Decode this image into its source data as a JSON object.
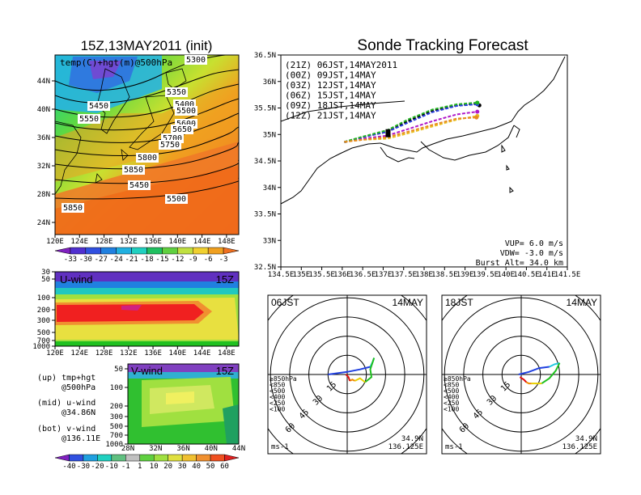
{
  "left": {
    "title": "15Z,13MAY2011 (init)",
    "map": {
      "panel_label": "temp(C)+hgt(m)@500hPa",
      "lon_ticks": [
        "120E",
        "124E",
        "128E",
        "132E",
        "136E",
        "140E",
        "144E",
        "148E"
      ],
      "lat_ticks": [
        "44N",
        "40N",
        "36N",
        "32N",
        "28N",
        "24N"
      ],
      "contour_labels": [
        "5350",
        "5400",
        "5450",
        "5500",
        "5550",
        "5600",
        "5650",
        "5700",
        "5750",
        "5800",
        "5850",
        "5450",
        "5500",
        "5850",
        "5300"
      ],
      "colorbar": [
        "-33",
        "-30",
        "-27",
        "-24",
        "-21",
        "-18",
        "-15",
        "-12",
        "-9",
        "-6",
        "-3"
      ]
    },
    "uwind": {
      "label": "U-wind",
      "time": "15Z",
      "p_ticks": [
        "30",
        "50",
        "100",
        "200",
        "300",
        "500",
        "700",
        "1000"
      ],
      "lon_ticks": [
        "120E",
        "124E",
        "128E",
        "132E",
        "136E",
        "140E",
        "144E",
        "148E"
      ]
    },
    "vwind": {
      "label": "V-wind",
      "time": "15Z",
      "p_ticks": [
        "50",
        "100",
        "200",
        "300",
        "500",
        "700",
        "1000"
      ],
      "lat_ticks": [
        "28N",
        "32N",
        "36N",
        "40N",
        "44N"
      ],
      "colorbar": [
        "-40",
        "-30",
        "-20",
        "-10",
        "-1",
        "1",
        "10",
        "20",
        "30",
        "40",
        "50",
        "60"
      ]
    },
    "legend": {
      "up1": "(up) tmp+hgt",
      "up2": "@500hPa",
      "mid1": "(mid) u-wind",
      "mid2": "@34.86N",
      "bot1": "(bot) v-wind",
      "bot2": "@136.11E"
    }
  },
  "right": {
    "title": "Sonde Tracking Forecast",
    "launches": [
      {
        "label": "(21Z)  06JST,14MAY2011",
        "color": "#000000"
      },
      {
        "label": "(00Z)  09JST,14MAY",
        "color": "#b018c8"
      },
      {
        "label": "(03Z)  12JST,14MAY",
        "color": "#2a3fe0"
      },
      {
        "label": "(06Z)  15JST,14MAY",
        "color": "#22b322"
      },
      {
        "label": "(09Z)  18JST,14MAY",
        "color": "#e8c020"
      },
      {
        "label": "(12Z)  21JST,14MAY",
        "color": "#e88a20"
      }
    ],
    "lon_ticks": [
      "134.5E",
      "135E",
      "135.5E",
      "136E",
      "136.5E",
      "137E",
      "137.5E",
      "138E",
      "138.5E",
      "139E",
      "139.5E",
      "140E",
      "140.5E",
      "141E",
      "141.5E"
    ],
    "lat_ticks": [
      "36.5N",
      "36N",
      "35.5N",
      "35N",
      "34.5N",
      "34N",
      "33.5N",
      "33N",
      "32.5N"
    ],
    "params": {
      "vup": "VUP=  6.0  m/s",
      "vdw": "VDW= -3.0  m/s",
      "burst": "Burst Alt= 34.0  km"
    }
  },
  "chart_data": [
    {
      "type": "line",
      "title": "Sonde Tracking Forecast",
      "xlim": [
        134.5,
        141.5
      ],
      "ylim": [
        32.5,
        36.5
      ],
      "series": [
        {
          "name": "(21Z) 06JST,14MAY2011",
          "points": [
            [
              136.05,
              34.85
            ],
            [
              136.5,
              34.95
            ],
            [
              137.1,
              35.05
            ],
            [
              137.6,
              35.25
            ],
            [
              138.2,
              35.45
            ],
            [
              138.8,
              35.55
            ],
            [
              139.25,
              35.58
            ],
            [
              139.35,
              35.55
            ]
          ]
        },
        {
          "name": "(00Z) 09JST,14MAY",
          "points": [
            [
              136.05,
              34.86
            ],
            [
              136.5,
              34.92
            ],
            [
              137.1,
              34.98
            ],
            [
              137.6,
              35.1
            ],
            [
              138.2,
              35.25
            ],
            [
              138.8,
              35.38
            ],
            [
              139.3,
              35.43
            ]
          ]
        },
        {
          "name": "(03Z) 12JST,14MAY",
          "points": [
            [
              136.05,
              34.86
            ],
            [
              136.5,
              34.95
            ],
            [
              137.1,
              35.05
            ],
            [
              137.6,
              35.22
            ],
            [
              138.2,
              35.42
            ],
            [
              138.8,
              35.54
            ],
            [
              139.3,
              35.57
            ]
          ]
        },
        {
          "name": "(06Z) 15JST,14MAY",
          "points": [
            [
              136.05,
              34.86
            ],
            [
              136.5,
              34.96
            ],
            [
              137.1,
              35.08
            ],
            [
              137.6,
              35.28
            ],
            [
              138.2,
              35.47
            ],
            [
              138.8,
              35.57
            ],
            [
              139.3,
              35.6
            ]
          ]
        },
        {
          "name": "(09Z) 18JST,14MAY",
          "points": [
            [
              136.05,
              34.86
            ],
            [
              136.5,
              34.9
            ],
            [
              137.1,
              34.92
            ],
            [
              137.6,
              35.02
            ],
            [
              138.2,
              35.15
            ],
            [
              138.8,
              35.28
            ],
            [
              139.3,
              35.35
            ]
          ]
        },
        {
          "name": "(12Z) 21JST,14MAY",
          "points": [
            [
              136.05,
              34.86
            ],
            [
              136.5,
              34.9
            ],
            [
              137.1,
              34.95
            ],
            [
              137.6,
              35.05
            ],
            [
              138.2,
              35.18
            ],
            [
              138.8,
              35.3
            ],
            [
              139.28,
              35.32
            ]
          ]
        }
      ]
    }
  ],
  "hodos": [
    {
      "time": "06JST",
      "date": "14MAY",
      "loc1": "34.9N",
      "loc2": "136.125E",
      "units": "ms-1",
      "rings": [
        "15",
        "30",
        "45",
        "60"
      ],
      "legend": [
        {
          "text": "≥850hPa",
          "color": "#e01010"
        },
        {
          "text": "<850",
          "color": "#f08c00"
        },
        {
          "text": "<500",
          "color": "#e8d000"
        },
        {
          "text": "<400",
          "color": "#20c020"
        },
        {
          "text": "<250",
          "color": "#20c8e0"
        },
        {
          "text": "<100",
          "color": "#2040e0"
        }
      ],
      "traces": [
        {
          "color": "#2040e0",
          "points": [
            [
              -15,
              0
            ],
            [
              0,
              2
            ],
            [
              10,
              4
            ],
            [
              18,
              6
            ]
          ]
        },
        {
          "color": "#20c8e0",
          "points": [
            [
              18,
              6
            ],
            [
              20,
              10
            ],
            [
              21,
              13
            ]
          ]
        },
        {
          "color": "#20c020",
          "points": [
            [
              14,
              -6
            ],
            [
              19,
              -2
            ],
            [
              18,
              4
            ],
            [
              21,
              13
            ]
          ]
        },
        {
          "color": "#e8d000",
          "points": [
            [
              6,
              -5
            ],
            [
              10,
              -3
            ],
            [
              14,
              -6
            ]
          ]
        },
        {
          "color": "#f08c00",
          "points": [
            [
              2,
              -5
            ],
            [
              4,
              -4
            ],
            [
              6,
              -5
            ]
          ]
        },
        {
          "color": "#e01010",
          "points": [
            [
              -1,
              0
            ],
            [
              1,
              -2
            ],
            [
              2,
              -5
            ]
          ]
        }
      ]
    },
    {
      "time": "18JST",
      "date": "14MAY",
      "loc1": "34.9N",
      "loc2": "136.125E",
      "units": "ms-1",
      "rings": [
        "15",
        "30",
        "45",
        "60"
      ],
      "legend": [
        {
          "text": "≥850hPa",
          "color": "#e01010"
        },
        {
          "text": "<850",
          "color": "#f08c00"
        },
        {
          "text": "<500",
          "color": "#e8d000"
        },
        {
          "text": "<400",
          "color": "#20c020"
        },
        {
          "text": "<250",
          "color": "#20c8e0"
        },
        {
          "text": "<100",
          "color": "#2040e0"
        }
      ],
      "traces": [
        {
          "color": "#2040e0",
          "points": [
            [
              -2,
              0
            ],
            [
              6,
              2
            ],
            [
              14,
              5
            ],
            [
              22,
              6
            ]
          ]
        },
        {
          "color": "#20c8e0",
          "points": [
            [
              22,
              6
            ],
            [
              26,
              8
            ],
            [
              30,
              9
            ]
          ]
        },
        {
          "color": "#20c020",
          "points": [
            [
              16,
              -7
            ],
            [
              22,
              -3
            ],
            [
              27,
              3
            ],
            [
              30,
              9
            ]
          ]
        },
        {
          "color": "#e8d000",
          "points": [
            [
              8,
              -7
            ],
            [
              12,
              -7
            ],
            [
              16,
              -7
            ]
          ]
        },
        {
          "color": "#f08c00",
          "points": [
            [
              4,
              -6
            ],
            [
              6,
              -7
            ],
            [
              8,
              -7
            ]
          ]
        },
        {
          "color": "#e01010",
          "points": [
            [
              -1,
              -2
            ],
            [
              2,
              -4
            ],
            [
              4,
              -6
            ]
          ]
        }
      ]
    }
  ]
}
